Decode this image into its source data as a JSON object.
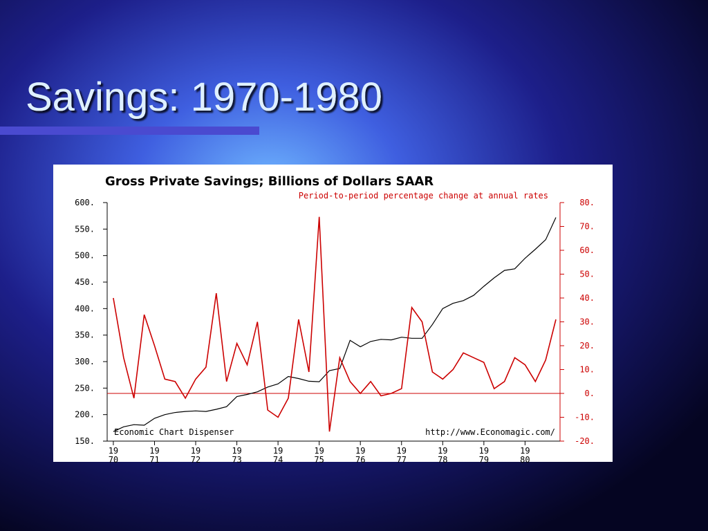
{
  "slide_title": "Savings: 1970-1980",
  "chart_data": {
    "type": "line",
    "title": "Gross Private Savings; Billions of Dollars SAAR",
    "subtitle": "Period-to-period percentage change at annual rates",
    "footer_left": "Economic Chart Dispenser",
    "footer_right": "http://www.Economagic.com/",
    "x": [
      1970,
      1970.25,
      1970.5,
      1970.75,
      1971,
      1971.25,
      1971.5,
      1971.75,
      1972,
      1972.25,
      1972.5,
      1972.75,
      1973,
      1973.25,
      1973.5,
      1973.75,
      1974,
      1974.25,
      1974.5,
      1974.75,
      1975,
      1975.25,
      1975.5,
      1975.75,
      1976,
      1976.25,
      1976.5,
      1976.75,
      1977,
      1977.25,
      1977.5,
      1977.75,
      1978,
      1978.25,
      1978.5,
      1978.75,
      1979,
      1979.25,
      1979.5,
      1979.75,
      1980,
      1980.25,
      1980.5,
      1980.75
    ],
    "xlim": [
      1969.85,
      1980.85
    ],
    "xticks": [
      {
        "value": 1970,
        "label": [
          "19",
          "70"
        ]
      },
      {
        "value": 1971,
        "label": [
          "19",
          "71"
        ]
      },
      {
        "value": 1972,
        "label": [
          "19",
          "72"
        ]
      },
      {
        "value": 1973,
        "label": [
          "19",
          "73"
        ]
      },
      {
        "value": 1974,
        "label": [
          "19",
          "74"
        ]
      },
      {
        "value": 1975,
        "label": [
          "19",
          "75"
        ]
      },
      {
        "value": 1976,
        "label": [
          "19",
          "76"
        ]
      },
      {
        "value": 1977,
        "label": [
          "19",
          "77"
        ]
      },
      {
        "value": 1978,
        "label": [
          "19",
          "78"
        ]
      },
      {
        "value": 1979,
        "label": [
          "19",
          "79"
        ]
      },
      {
        "value": 1980,
        "label": [
          "19",
          "80"
        ]
      }
    ],
    "ylim": [
      150,
      600
    ],
    "yticks": [
      {
        "value": 150,
        "label": "150."
      },
      {
        "value": 200,
        "label": "200."
      },
      {
        "value": 250,
        "label": "250."
      },
      {
        "value": 300,
        "label": "300."
      },
      {
        "value": 350,
        "label": "350."
      },
      {
        "value": 400,
        "label": "400."
      },
      {
        "value": 450,
        "label": "450."
      },
      {
        "value": 500,
        "label": "500."
      },
      {
        "value": 550,
        "label": "550."
      },
      {
        "value": 600,
        "label": "600."
      }
    ],
    "y2lim": [
      -20,
      80
    ],
    "y2ticks": [
      {
        "value": -20,
        "label": "-20."
      },
      {
        "value": -10,
        "label": "-10."
      },
      {
        "value": 0,
        "label": "0."
      },
      {
        "value": 10,
        "label": "10."
      },
      {
        "value": 20,
        "label": "20."
      },
      {
        "value": 30,
        "label": "30."
      },
      {
        "value": 40,
        "label": "40."
      },
      {
        "value": 50,
        "label": "50."
      },
      {
        "value": 60,
        "label": "60."
      },
      {
        "value": 70,
        "label": "70."
      },
      {
        "value": 80,
        "label": "80."
      }
    ],
    "series": [
      {
        "color": "#000000",
        "axis": "y",
        "values": [
          168,
          177,
          181,
          180,
          193,
          200,
          204,
          206,
          207,
          206,
          210,
          215,
          234,
          238,
          243,
          252,
          258,
          272,
          268,
          263,
          262,
          283,
          287,
          340,
          328,
          338,
          342,
          341,
          346,
          344,
          344,
          370,
          400,
          410,
          415,
          425,
          442,
          458,
          472,
          475,
          495,
          512,
          530,
          572
        ]
      },
      {
        "color": "#cc0000",
        "axis": "y2",
        "values": [
          40,
          15,
          -2,
          33,
          20,
          6,
          5,
          -2,
          6,
          11,
          42,
          5,
          21,
          12,
          30,
          -7,
          -10,
          -2,
          31,
          9,
          74,
          -16,
          15,
          5,
          0,
          5,
          -1,
          0,
          2,
          36,
          30,
          9,
          6,
          10,
          17,
          15,
          13,
          2,
          5,
          15,
          12,
          5,
          14,
          31
        ]
      }
    ]
  }
}
